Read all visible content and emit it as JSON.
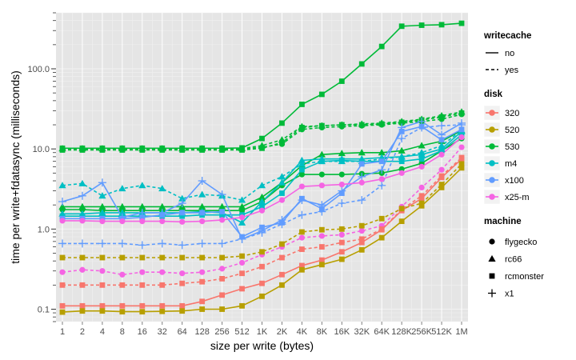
{
  "chart_data": {
    "type": "line",
    "title": "",
    "xlabel": "size per write (bytes)",
    "ylabel": "time per write+fdatasync (milliseconds)",
    "x_scale": "log2",
    "y_scale": "log10",
    "ylim": [
      0.07,
      500
    ],
    "categories": [
      "1",
      "2",
      "4",
      "8",
      "16",
      "32",
      "64",
      "128",
      "256",
      "512",
      "1K",
      "2K",
      "4K",
      "8K",
      "16K",
      "32K",
      "64K",
      "128K",
      "256K",
      "512K",
      "1M"
    ],
    "y_ticks": [
      {
        "value": 0.1,
        "label": "0.1"
      },
      {
        "value": 1,
        "label": "1.0"
      },
      {
        "value": 10,
        "label": "10.0"
      },
      {
        "value": 100,
        "label": "100.0"
      }
    ],
    "legends": {
      "writecache": {
        "title": "writecache",
        "items": [
          {
            "label": "no",
            "dash": "solid"
          },
          {
            "label": "yes",
            "dash": "dashed"
          }
        ]
      },
      "disk": {
        "title": "disk",
        "items": [
          {
            "label": "320",
            "color": "#F8766D"
          },
          {
            "label": "520",
            "color": "#B79F00"
          },
          {
            "label": "530",
            "color": "#00BA38"
          },
          {
            "label": "m4",
            "color": "#00BFC4"
          },
          {
            "label": "x100",
            "color": "#619CFF"
          },
          {
            "label": "x25-m",
            "color": "#F564E3"
          }
        ]
      },
      "machine": {
        "title": "machine",
        "items": [
          {
            "label": "flygecko",
            "shape": "circle"
          },
          {
            "label": "rc66",
            "shape": "triangle"
          },
          {
            "label": "rcmonster",
            "shape": "square"
          },
          {
            "label": "x1",
            "shape": "plus"
          }
        ]
      }
    },
    "series": [
      {
        "disk": "530",
        "writecache": "no",
        "machine": "flygecko",
        "values": [
          1.75,
          1.75,
          1.7,
          1.7,
          1.7,
          1.7,
          1.7,
          1.7,
          1.7,
          1.7,
          2.2,
          3.5,
          4.8,
          4.8,
          4.8,
          4.9,
          5.0,
          5.6,
          6.6,
          9.5,
          13.5
        ]
      },
      {
        "disk": "530",
        "writecache": "no",
        "machine": "rc66",
        "values": [
          1.9,
          1.9,
          1.9,
          1.9,
          1.9,
          1.9,
          1.9,
          1.9,
          1.9,
          1.9,
          2.5,
          3.8,
          6.2,
          8.5,
          8.8,
          9.0,
          9.0,
          9.5,
          11.0,
          12.5,
          17.0
        ]
      },
      {
        "disk": "530",
        "writecache": "no",
        "machine": "rcmonster",
        "values": [
          10.2,
          10.2,
          10.2,
          10.2,
          10.2,
          10.2,
          10.2,
          10.2,
          10.2,
          10.3,
          13.5,
          21,
          36,
          48,
          70,
          115,
          190,
          340,
          350,
          355,
          370
        ]
      },
      {
        "disk": "530",
        "writecache": "yes",
        "machine": "flygecko",
        "values": [
          9.9,
          9.9,
          9.9,
          9.9,
          9.9,
          9.9,
          9.9,
          9.9,
          9.9,
          9.9,
          10.5,
          11.5,
          17.5,
          18.5,
          19.0,
          19.5,
          20.0,
          21.0,
          22.0,
          23.5,
          27.0
        ]
      },
      {
        "disk": "530",
        "writecache": "yes",
        "machine": "rc66",
        "values": [
          10.1,
          10.1,
          10.1,
          10.1,
          10.1,
          10.1,
          10.1,
          10.1,
          10.1,
          10.1,
          11.0,
          13.0,
          19.0,
          19.5,
          20.0,
          20.5,
          21.0,
          22.0,
          23.5,
          26.0,
          29.0
        ]
      },
      {
        "disk": "530",
        "writecache": "yes",
        "machine": "rcmonster",
        "values": [
          9.7,
          9.7,
          9.7,
          9.7,
          9.7,
          9.7,
          9.7,
          9.7,
          9.7,
          9.7,
          10.2,
          12.0,
          18.5,
          19.5,
          20.0,
          20.0,
          20.5,
          21.5,
          23.0,
          25.0,
          28.0
        ]
      },
      {
        "disk": "m4",
        "writecache": "no",
        "machine": "rc66",
        "values": [
          1.55,
          1.55,
          1.6,
          1.6,
          1.6,
          1.6,
          1.6,
          1.65,
          1.6,
          1.2,
          2.2,
          3.8,
          7.2,
          7.5,
          7.5,
          7.5,
          7.8,
          8.0,
          8.5,
          10.0,
          16.5
        ]
      },
      {
        "disk": "m4",
        "writecache": "no",
        "machine": "rcmonster",
        "values": [
          1.45,
          1.45,
          1.45,
          1.45,
          1.45,
          1.45,
          1.45,
          1.5,
          1.5,
          1.5,
          1.9,
          2.8,
          5.5,
          7.0,
          7.2,
          7.0,
          7.0,
          7.0,
          7.5,
          9.5,
          15.0
        ]
      },
      {
        "disk": "m4",
        "writecache": "yes",
        "machine": "rc66",
        "values": [
          3.5,
          3.7,
          2.6,
          3.2,
          3.5,
          3.2,
          2.4,
          2.7,
          2.6,
          2.3,
          3.5,
          4.5,
          6.5,
          7.0,
          7.0,
          7.0,
          7.5,
          8.0,
          9.0,
          11.0,
          17.0
        ]
      },
      {
        "disk": "x100",
        "writecache": "no",
        "machine": "rcmonster",
        "values": [
          1.35,
          1.35,
          1.35,
          1.35,
          1.4,
          1.5,
          1.6,
          1.6,
          1.65,
          0.8,
          1.05,
          1.2,
          2.4,
          1.8,
          2.8,
          6.5,
          7.0,
          16.5,
          19.0,
          13.0,
          17.5
        ]
      },
      {
        "disk": "x100",
        "writecache": "no",
        "machine": "x1",
        "values": [
          2.2,
          2.6,
          3.8,
          1.4,
          1.6,
          1.6,
          2.1,
          4.0,
          2.7,
          0.75,
          0.95,
          1.3,
          2.3,
          2.0,
          3.0,
          4.5,
          5.5,
          18.5,
          22.0,
          15.0,
          21.0
        ]
      },
      {
        "disk": "x100",
        "writecache": "yes",
        "machine": "x1",
        "values": [
          0.66,
          0.66,
          0.66,
          0.66,
          0.63,
          0.66,
          0.63,
          0.66,
          0.66,
          0.75,
          0.9,
          1.15,
          1.5,
          1.65,
          2.1,
          2.3,
          3.5,
          13.5,
          18.5,
          19.5,
          20.0
        ]
      },
      {
        "disk": "x25-m",
        "writecache": "no",
        "machine": "flygecko",
        "values": [
          1.27,
          1.27,
          1.25,
          1.25,
          1.25,
          1.25,
          1.23,
          1.25,
          1.3,
          1.4,
          1.7,
          2.3,
          3.4,
          3.5,
          3.6,
          3.8,
          4.2,
          5.0,
          6.0,
          8.5,
          14.0
        ]
      },
      {
        "disk": "x25-m",
        "writecache": "yes",
        "machine": "flygecko",
        "values": [
          0.29,
          0.31,
          0.3,
          0.27,
          0.29,
          0.29,
          0.28,
          0.29,
          0.32,
          0.38,
          0.48,
          0.6,
          0.78,
          0.82,
          0.85,
          0.95,
          1.1,
          1.9,
          3.3,
          5.5,
          10.5
        ]
      },
      {
        "disk": "320",
        "writecache": "no",
        "machine": "rcmonster",
        "values": [
          0.11,
          0.11,
          0.11,
          0.11,
          0.11,
          0.11,
          0.11,
          0.125,
          0.15,
          0.18,
          0.21,
          0.27,
          0.35,
          0.41,
          0.52,
          0.68,
          0.98,
          1.7,
          2.4,
          4.4,
          7.5
        ]
      },
      {
        "disk": "320",
        "writecache": "yes",
        "machine": "rcmonster",
        "values": [
          0.2,
          0.2,
          0.2,
          0.2,
          0.2,
          0.2,
          0.21,
          0.22,
          0.24,
          0.28,
          0.34,
          0.44,
          0.56,
          0.6,
          0.68,
          0.75,
          1.0,
          1.75,
          2.6,
          4.6,
          7.8
        ]
      },
      {
        "disk": "520",
        "writecache": "no",
        "machine": "rcmonster",
        "values": [
          0.092,
          0.095,
          0.095,
          0.093,
          0.093,
          0.094,
          0.095,
          0.1,
          0.1,
          0.11,
          0.145,
          0.2,
          0.31,
          0.36,
          0.42,
          0.55,
          0.78,
          1.25,
          1.95,
          3.3,
          5.8
        ]
      },
      {
        "disk": "520",
        "writecache": "yes",
        "machine": "rcmonster",
        "values": [
          0.44,
          0.44,
          0.44,
          0.44,
          0.44,
          0.44,
          0.44,
          0.44,
          0.44,
          0.46,
          0.52,
          0.65,
          0.92,
          0.98,
          1.0,
          1.1,
          1.35,
          1.8,
          2.1,
          3.6,
          6.5
        ]
      }
    ]
  }
}
